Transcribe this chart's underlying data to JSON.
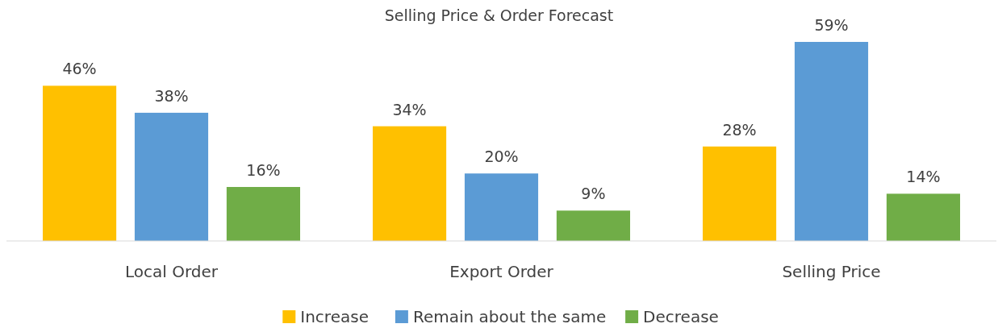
{
  "chart_data": {
    "type": "bar",
    "title": "Selling Price & Order Forecast",
    "categories": [
      "Local Order",
      "Export Order",
      "Selling Price"
    ],
    "series": [
      {
        "name": "Increase",
        "color": "#ffc000",
        "values": [
          46,
          34,
          28
        ],
        "value_labels": [
          "46%",
          "34%",
          "28%"
        ]
      },
      {
        "name": "Remain about the same",
        "color": "#5b9bd5",
        "values": [
          38,
          20,
          59
        ],
        "value_labels": [
          "38%",
          "20%",
          "59%"
        ]
      },
      {
        "name": "Decrease",
        "color": "#70ad47",
        "values": [
          16,
          9,
          14
        ],
        "value_labels": [
          "16%",
          "9%",
          "14%"
        ]
      }
    ],
    "legend": "bottom"
  }
}
